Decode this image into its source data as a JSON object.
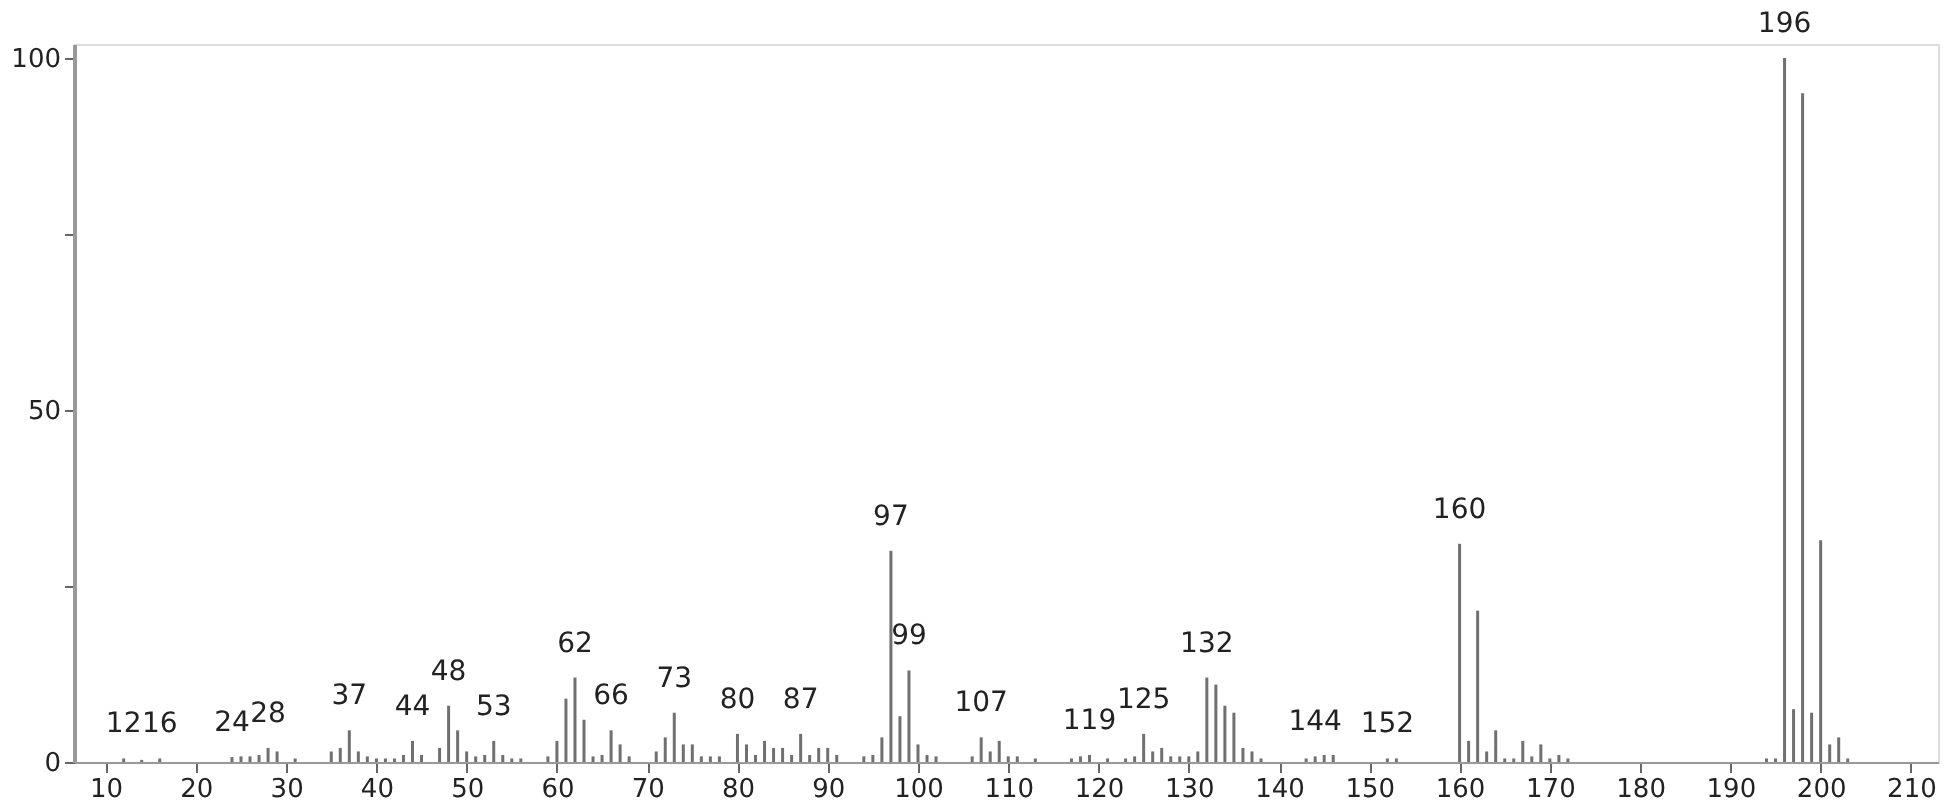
{
  "chart_data": {
    "type": "bar",
    "x": [
      12,
      14,
      16,
      24,
      25,
      26,
      27,
      28,
      29,
      31,
      35,
      36,
      37,
      38,
      39,
      40,
      41,
      42,
      43,
      44,
      45,
      47,
      48,
      49,
      50,
      51,
      52,
      53,
      54,
      55,
      56,
      59,
      60,
      61,
      62,
      63,
      64,
      65,
      66,
      67,
      68,
      71,
      72,
      73,
      74,
      75,
      76,
      77,
      78,
      80,
      81,
      82,
      83,
      84,
      85,
      86,
      87,
      88,
      89,
      90,
      91,
      94,
      95,
      96,
      97,
      98,
      99,
      100,
      101,
      102,
      106,
      107,
      108,
      109,
      110,
      111,
      113,
      117,
      118,
      119,
      121,
      123,
      124,
      125,
      126,
      127,
      128,
      129,
      130,
      131,
      132,
      133,
      134,
      135,
      136,
      137,
      138,
      143,
      144,
      145,
      146,
      152,
      153,
      160,
      161,
      162,
      163,
      164,
      165,
      166,
      167,
      168,
      169,
      170,
      171,
      172,
      194,
      195,
      196,
      197,
      198,
      199,
      200,
      201,
      202,
      203
    ],
    "values": [
      0.5,
      0.3,
      0.5,
      0.7,
      0.8,
      0.8,
      1,
      2,
      1.5,
      0.5,
      1.5,
      2,
      4.5,
      1.5,
      0.8,
      0.5,
      0.5,
      0.5,
      1,
      3,
      1,
      2,
      8,
      4.5,
      1.5,
      0.8,
      1,
      3,
      1,
      0.5,
      0.5,
      0.8,
      3,
      9,
      12,
      6,
      0.8,
      1,
      4.5,
      2.5,
      0.8,
      1.5,
      3.5,
      7,
      2.5,
      2.5,
      0.8,
      0.8,
      0.8,
      4,
      2.5,
      1,
      3,
      2,
      2,
      1,
      4,
      1,
      2,
      2,
      1,
      0.8,
      1,
      3.5,
      30,
      6.5,
      13,
      2.5,
      1,
      0.8,
      0.8,
      3.5,
      1.5,
      3,
      0.8,
      0.8,
      0.5,
      0.5,
      0.8,
      1,
      0.5,
      0.5,
      0.8,
      4,
      1.5,
      2,
      0.8,
      0.8,
      0.8,
      1.5,
      12,
      11,
      8,
      7,
      2,
      1.5,
      0.5,
      0.5,
      0.8,
      1,
      1,
      0.5,
      0.5,
      31,
      3,
      21.5,
      1.5,
      4.5,
      0.5,
      0.5,
      3,
      0.8,
      2.5,
      0.5,
      1,
      0.5,
      0.5,
      0.5,
      100,
      7.5,
      95,
      7,
      31.5,
      2.5,
      3.5,
      0.5
    ],
    "color": "#707070",
    "xlim": [
      6.5,
      213
    ],
    "ylim": [
      0,
      102
    ],
    "xticks": [
      10,
      20,
      30,
      40,
      50,
      60,
      70,
      80,
      90,
      100,
      110,
      120,
      130,
      140,
      150,
      160,
      170,
      180,
      190,
      200,
      210
    ],
    "yticks": [
      0,
      {
        "value": 25,
        "label": null
      },
      50,
      {
        "value": 75,
        "label": null
      },
      100
    ],
    "grid": false,
    "annotations": [
      {
        "text": "12",
        "x": 12,
        "y": 0.5
      },
      {
        "text": "16",
        "x": 16,
        "y": 0.5
      },
      {
        "text": "24",
        "x": 24,
        "y": 0.7
      },
      {
        "text": "28",
        "x": 28,
        "y": 2
      },
      {
        "text": "37",
        "x": 37,
        "y": 4.5
      },
      {
        "text": "44",
        "x": 44,
        "y": 3
      },
      {
        "text": "48",
        "x": 48,
        "y": 8
      },
      {
        "text": "53",
        "x": 53,
        "y": 3
      },
      {
        "text": "62",
        "x": 62,
        "y": 12
      },
      {
        "text": "66",
        "x": 66,
        "y": 4.5
      },
      {
        "text": "73",
        "x": 73,
        "y": 7
      },
      {
        "text": "80",
        "x": 80,
        "y": 4
      },
      {
        "text": "87",
        "x": 87,
        "y": 4
      },
      {
        "text": "97",
        "x": 97,
        "y": 30
      },
      {
        "text": "99",
        "x": 99,
        "y": 13
      },
      {
        "text": "107",
        "x": 107,
        "y": 3.5
      },
      {
        "text": "119",
        "x": 119,
        "y": 1
      },
      {
        "text": "125",
        "x": 125,
        "y": 4
      },
      {
        "text": "132",
        "x": 132,
        "y": 12
      },
      {
        "text": "144",
        "x": 144,
        "y": 0.8
      },
      {
        "text": "152",
        "x": 152,
        "y": 0.5
      },
      {
        "text": "160",
        "x": 160,
        "y": 31
      },
      {
        "text": "196",
        "x": 196,
        "y": 100
      }
    ]
  }
}
